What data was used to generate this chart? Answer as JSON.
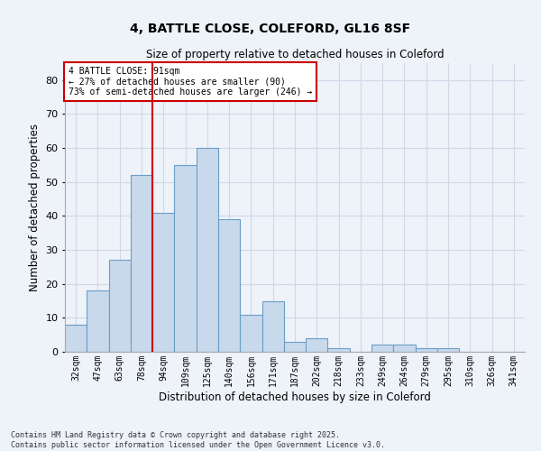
{
  "title_line1": "4, BATTLE CLOSE, COLEFORD, GL16 8SF",
  "title_line2": "Size of property relative to detached houses in Coleford",
  "xlabel": "Distribution of detached houses by size in Coleford",
  "ylabel": "Number of detached properties",
  "categories": [
    "32sqm",
    "47sqm",
    "63sqm",
    "78sqm",
    "94sqm",
    "109sqm",
    "125sqm",
    "140sqm",
    "156sqm",
    "171sqm",
    "187sqm",
    "202sqm",
    "218sqm",
    "233sqm",
    "249sqm",
    "264sqm",
    "279sqm",
    "295sqm",
    "310sqm",
    "326sqm",
    "341sqm"
  ],
  "values": [
    8,
    18,
    27,
    52,
    41,
    55,
    60,
    39,
    11,
    15,
    3,
    4,
    1,
    0,
    2,
    2,
    1,
    1,
    0,
    0,
    0
  ],
  "bar_color": "#c9d9ec",
  "bar_edge_color": "#6a9ec5",
  "grid_color": "#d0d8e8",
  "background_color": "#eef2f9",
  "annotation_text": "4 BATTLE CLOSE: 91sqm\n← 27% of detached houses are smaller (90)\n73% of semi-detached houses are larger (246) →",
  "annotation_box_color": "#ffffff",
  "annotation_box_edge": "#cc0000",
  "ylim": [
    0,
    85
  ],
  "yticks": [
    0,
    10,
    20,
    30,
    40,
    50,
    60,
    70,
    80
  ],
  "footer_line1": "Contains HM Land Registry data © Crown copyright and database right 2025.",
  "footer_line2": "Contains public sector information licensed under the Open Government Licence v3.0."
}
